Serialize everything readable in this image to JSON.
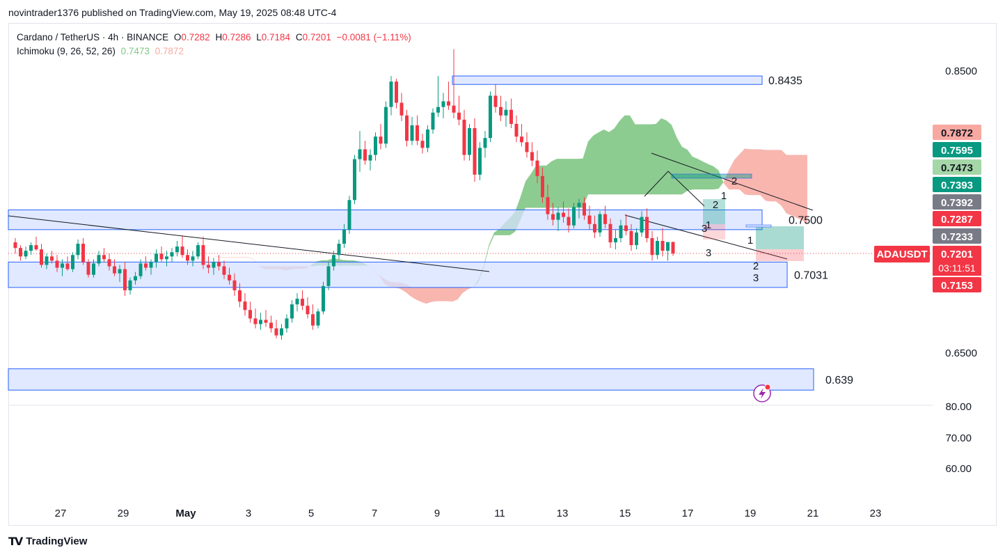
{
  "publish_line": "novintrader1376 published on TradingView.com, May 19, 2025 08:48 UTC-4",
  "legend": {
    "symbol": "Cardano / TetherUS · 4h · BINANCE",
    "o_label": "O",
    "o": "0.7282",
    "h_label": "H",
    "h": "0.7286",
    "l_label": "L",
    "l": "0.7184",
    "c_label": "C",
    "c": "0.7201",
    "change": "−0.0081 (−1.11%)",
    "ichimoku_label": "Ichimoku (9, 26, 52, 26)",
    "ichimoku_a": "0.7473",
    "ichimoku_b": "0.7872"
  },
  "footer": {
    "brand": "TradingView",
    "logo_icon": "tradingview-logo-icon"
  },
  "colors": {
    "up": "#089981",
    "down": "#f23645",
    "cloud_green": "#81c784",
    "cloud_red": "#f7a9a1",
    "zone_fill": "#d6e2ff",
    "zone_stroke": "#2962ff",
    "teal": "#089981",
    "gray": "#787b86"
  },
  "chart_data": {
    "type": "candlestick",
    "symbol": "ADAUSDT",
    "timeframe": "4h",
    "x_ticks": [
      "27",
      "29",
      "May",
      "3",
      "5",
      "7",
      "9",
      "11",
      "13",
      "15",
      "17",
      "19",
      "21",
      "23"
    ],
    "y_ticks": [
      "0.8500",
      "0.6500"
    ],
    "lower_scale_ticks": [
      "80.00",
      "70.00",
      "60.00"
    ],
    "ylim": [
      0.615,
      0.875
    ],
    "price_labels": [
      {
        "value": "0.7872",
        "color": "#f7a9a1",
        "text_color": "#131722"
      },
      {
        "value": "0.7595",
        "color": "#089981",
        "text_color": "#ffffff"
      },
      {
        "value": "0.7473",
        "color": "#a5d6a7",
        "text_color": "#131722"
      },
      {
        "value": "0.7393",
        "color": "#089981",
        "text_color": "#ffffff"
      },
      {
        "value": "0.7392",
        "color": "#787b86",
        "text_color": "#ffffff"
      },
      {
        "value": "0.7287",
        "color": "#f23645",
        "text_color": "#ffffff"
      },
      {
        "value": "0.7233",
        "color": "#787b86",
        "text_color": "#ffffff"
      },
      {
        "value": "0.7201",
        "color": "#f23645",
        "text_color": "#ffffff"
      },
      {
        "value": "0.7153",
        "color": "#f23645",
        "text_color": "#ffffff"
      }
    ],
    "symbol_tag": "ADAUSDT",
    "countdown": "03:11:51",
    "zones": [
      {
        "label": "0.8435",
        "low": 0.84,
        "high": 0.846,
        "from": "Apr 10",
        "to": "May 19"
      },
      {
        "label": "0.7500",
        "low": 0.737,
        "high": 0.751,
        "from": "Apr 25",
        "to": "May 19"
      },
      {
        "label": "0.7031",
        "low": 0.696,
        "high": 0.714,
        "from": "Apr 25",
        "to": "May 20"
      },
      {
        "label": "0.639",
        "low": 0.6232,
        "high": 0.6383,
        "from": "Apr 25",
        "to": "May 20"
      }
    ],
    "wave_labels": [
      "1",
      "2",
      "3",
      "1",
      "2",
      "3",
      "1",
      "2",
      "3"
    ],
    "candles": [
      [
        0.728,
        0.731,
        0.72,
        0.724
      ],
      [
        0.724,
        0.726,
        0.715,
        0.718
      ],
      [
        0.718,
        0.725,
        0.716,
        0.722
      ],
      [
        0.722,
        0.728,
        0.719,
        0.726
      ],
      [
        0.726,
        0.732,
        0.722,
        0.723
      ],
      [
        0.723,
        0.727,
        0.71,
        0.712
      ],
      [
        0.712,
        0.72,
        0.709,
        0.718
      ],
      [
        0.718,
        0.722,
        0.713,
        0.715
      ],
      [
        0.715,
        0.719,
        0.707,
        0.71
      ],
      [
        0.71,
        0.716,
        0.704,
        0.713
      ],
      [
        0.713,
        0.718,
        0.708,
        0.709
      ],
      [
        0.709,
        0.721,
        0.707,
        0.719
      ],
      [
        0.719,
        0.73,
        0.716,
        0.727
      ],
      [
        0.727,
        0.731,
        0.712,
        0.714
      ],
      [
        0.714,
        0.716,
        0.703,
        0.705
      ],
      [
        0.705,
        0.716,
        0.703,
        0.713
      ],
      [
        0.713,
        0.722,
        0.711,
        0.719
      ],
      [
        0.719,
        0.724,
        0.714,
        0.716
      ],
      [
        0.716,
        0.72,
        0.708,
        0.711
      ],
      [
        0.711,
        0.716,
        0.704,
        0.706
      ],
      [
        0.706,
        0.712,
        0.7,
        0.709
      ],
      [
        0.709,
        0.714,
        0.69,
        0.694
      ],
      [
        0.694,
        0.703,
        0.691,
        0.701
      ],
      [
        0.701,
        0.707,
        0.698,
        0.704
      ],
      [
        0.704,
        0.716,
        0.702,
        0.713
      ],
      [
        0.713,
        0.718,
        0.708,
        0.71
      ],
      [
        0.71,
        0.716,
        0.705,
        0.714
      ],
      [
        0.714,
        0.723,
        0.71,
        0.72
      ],
      [
        0.72,
        0.725,
        0.714,
        0.716
      ],
      [
        0.716,
        0.722,
        0.711,
        0.718
      ],
      [
        0.718,
        0.724,
        0.714,
        0.721
      ],
      [
        0.721,
        0.729,
        0.718,
        0.725
      ],
      [
        0.725,
        0.733,
        0.717,
        0.719
      ],
      [
        0.719,
        0.723,
        0.712,
        0.715
      ],
      [
        0.715,
        0.722,
        0.711,
        0.718
      ],
      [
        0.718,
        0.728,
        0.716,
        0.726
      ],
      [
        0.726,
        0.732,
        0.709,
        0.712
      ],
      [
        0.712,
        0.718,
        0.706,
        0.71
      ],
      [
        0.71,
        0.717,
        0.705,
        0.714
      ],
      [
        0.714,
        0.719,
        0.708,
        0.711
      ],
      [
        0.711,
        0.715,
        0.702,
        0.705
      ],
      [
        0.705,
        0.71,
        0.698,
        0.701
      ],
      [
        0.701,
        0.706,
        0.69,
        0.694
      ],
      [
        0.694,
        0.699,
        0.682,
        0.686
      ],
      [
        0.686,
        0.692,
        0.676,
        0.68
      ],
      [
        0.68,
        0.686,
        0.671,
        0.674
      ],
      [
        0.674,
        0.681,
        0.667,
        0.67
      ],
      [
        0.67,
        0.678,
        0.666,
        0.673
      ],
      [
        0.673,
        0.68,
        0.668,
        0.671
      ],
      [
        0.671,
        0.676,
        0.664,
        0.667
      ],
      [
        0.667,
        0.673,
        0.66,
        0.662
      ],
      [
        0.662,
        0.67,
        0.659,
        0.667
      ],
      [
        0.667,
        0.677,
        0.664,
        0.674
      ],
      [
        0.674,
        0.687,
        0.671,
        0.684
      ],
      [
        0.684,
        0.692,
        0.679,
        0.688
      ],
      [
        0.688,
        0.694,
        0.68,
        0.683
      ],
      [
        0.683,
        0.689,
        0.674,
        0.677
      ],
      [
        0.677,
        0.684,
        0.666,
        0.669
      ],
      [
        0.669,
        0.681,
        0.667,
        0.679
      ],
      [
        0.679,
        0.7,
        0.677,
        0.697
      ],
      [
        0.697,
        0.714,
        0.694,
        0.711
      ],
      [
        0.711,
        0.722,
        0.708,
        0.719
      ],
      [
        0.719,
        0.73,
        0.716,
        0.727
      ],
      [
        0.727,
        0.741,
        0.724,
        0.737
      ],
      [
        0.737,
        0.761,
        0.734,
        0.758
      ],
      [
        0.758,
        0.79,
        0.755,
        0.787
      ],
      [
        0.787,
        0.807,
        0.778,
        0.794
      ],
      [
        0.794,
        0.8,
        0.783,
        0.786
      ],
      [
        0.786,
        0.794,
        0.779,
        0.79
      ],
      [
        0.79,
        0.806,
        0.786,
        0.803
      ],
      [
        0.803,
        0.812,
        0.794,
        0.798
      ],
      [
        0.798,
        0.828,
        0.795,
        0.824
      ],
      [
        0.824,
        0.846,
        0.818,
        0.842
      ],
      [
        0.842,
        0.844,
        0.823,
        0.827
      ],
      [
        0.827,
        0.834,
        0.814,
        0.818
      ],
      [
        0.818,
        0.822,
        0.796,
        0.8
      ],
      [
        0.8,
        0.817,
        0.797,
        0.811
      ],
      [
        0.811,
        0.818,
        0.797,
        0.8
      ],
      [
        0.8,
        0.805,
        0.791,
        0.795
      ],
      [
        0.795,
        0.811,
        0.792,
        0.808
      ],
      [
        0.808,
        0.823,
        0.805,
        0.82
      ],
      [
        0.82,
        0.846,
        0.817,
        0.824
      ],
      [
        0.824,
        0.834,
        0.816,
        0.828
      ],
      [
        0.828,
        0.842,
        0.822,
        0.825
      ],
      [
        0.825,
        0.865,
        0.816,
        0.82
      ],
      [
        0.82,
        0.832,
        0.811,
        0.815
      ],
      [
        0.815,
        0.822,
        0.786,
        0.79
      ],
      [
        0.79,
        0.812,
        0.786,
        0.809
      ],
      [
        0.809,
        0.816,
        0.771,
        0.776
      ],
      [
        0.776,
        0.799,
        0.772,
        0.795
      ],
      [
        0.795,
        0.807,
        0.788,
        0.802
      ],
      [
        0.802,
        0.835,
        0.799,
        0.832
      ],
      [
        0.832,
        0.84,
        0.82,
        0.824
      ],
      [
        0.824,
        0.832,
        0.814,
        0.818
      ],
      [
        0.818,
        0.828,
        0.81,
        0.822
      ],
      [
        0.822,
        0.83,
        0.809,
        0.812
      ],
      [
        0.812,
        0.818,
        0.799,
        0.803
      ],
      [
        0.803,
        0.812,
        0.796,
        0.799
      ],
      [
        0.799,
        0.806,
        0.788,
        0.792
      ],
      [
        0.792,
        0.799,
        0.782,
        0.786
      ],
      [
        0.786,
        0.793,
        0.77,
        0.775
      ],
      [
        0.775,
        0.781,
        0.756,
        0.76
      ],
      [
        0.76,
        0.769,
        0.744,
        0.748
      ],
      [
        0.748,
        0.756,
        0.74,
        0.744
      ],
      [
        0.744,
        0.753,
        0.736,
        0.749
      ],
      [
        0.749,
        0.757,
        0.742,
        0.746
      ],
      [
        0.746,
        0.752,
        0.735,
        0.74
      ],
      [
        0.74,
        0.756,
        0.738,
        0.753
      ],
      [
        0.753,
        0.759,
        0.745,
        0.756
      ],
      [
        0.756,
        0.76,
        0.744,
        0.747
      ],
      [
        0.747,
        0.754,
        0.737,
        0.741
      ],
      [
        0.741,
        0.747,
        0.731,
        0.735
      ],
      [
        0.735,
        0.75,
        0.732,
        0.748
      ],
      [
        0.748,
        0.754,
        0.738,
        0.741
      ],
      [
        0.741,
        0.745,
        0.724,
        0.728
      ],
      [
        0.728,
        0.737,
        0.723,
        0.731
      ],
      [
        0.731,
        0.744,
        0.728,
        0.74
      ],
      [
        0.74,
        0.748,
        0.733,
        0.736
      ],
      [
        0.736,
        0.741,
        0.722,
        0.726
      ],
      [
        0.726,
        0.738,
        0.723,
        0.735
      ],
      [
        0.735,
        0.75,
        0.732,
        0.746
      ],
      [
        0.746,
        0.752,
        0.728,
        0.731
      ],
      [
        0.731,
        0.736,
        0.715,
        0.719
      ],
      [
        0.719,
        0.732,
        0.716,
        0.729
      ],
      [
        0.729,
        0.738,
        0.718,
        0.722
      ],
      [
        0.722,
        0.728,
        0.715,
        0.7282
      ],
      [
        0.7282,
        0.7286,
        0.7184,
        0.7201
      ]
    ],
    "cloud_note": "Ichimoku cloud (leading spans) displaced 26 bars ahead"
  }
}
